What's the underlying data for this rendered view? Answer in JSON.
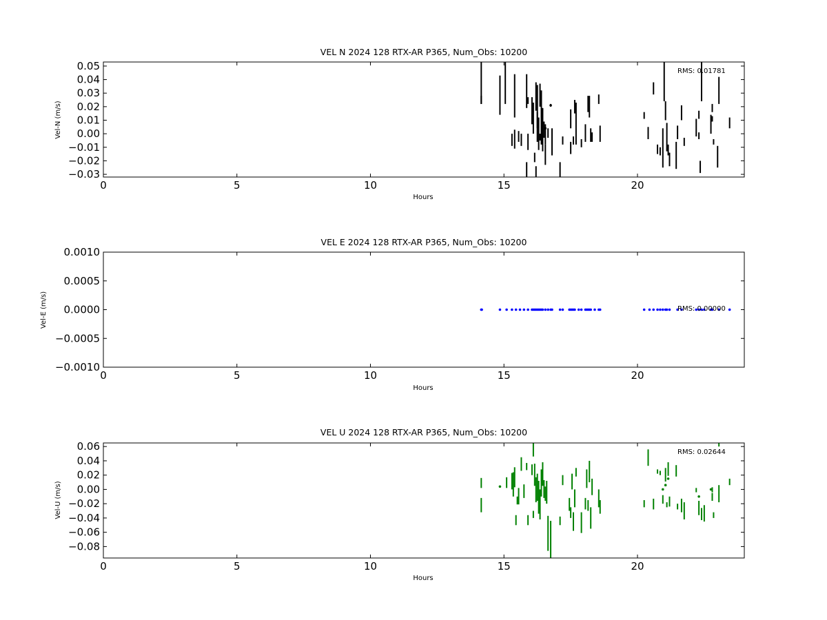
{
  "chart_data": [
    {
      "type": "scatter",
      "title": "VEL N 2024 128 RTX-AR  P365, Num_Obs: 10200",
      "xlabel": "Hours",
      "ylabel": "Vel-N (m/s)",
      "xlim": [
        0,
        24
      ],
      "ylim": [
        -0.032,
        0.053
      ],
      "xticks": [
        0,
        5,
        10,
        15,
        20
      ],
      "xtick_labels": [
        "0",
        "5",
        "10",
        "15",
        "20"
      ],
      "yticks": [
        -0.03,
        -0.02,
        -0.01,
        0.0,
        0.01,
        0.02,
        0.03,
        0.04,
        0.05
      ],
      "ytick_labels": [
        "−0.03",
        "−0.02",
        "−0.01",
        "0.00",
        "0.01",
        "0.02",
        "0.03",
        "0.04",
        "0.05"
      ],
      "color": "#000000",
      "annotation": "RMS:  0.01781",
      "annotation_color": "#0000ff",
      "grid": false,
      "segments": [
        [
          14.15,
          0.022,
          0.053
        ],
        [
          14.15,
          0.022,
          0.028
        ],
        [
          14.85,
          0.014,
          0.043
        ],
        [
          15.05,
          0.022,
          0.053
        ],
        [
          15.3,
          -0.009,
          0.0
        ],
        [
          15.4,
          0.012,
          0.044
        ],
        [
          15.4,
          -0.011,
          0.003
        ],
        [
          15.55,
          -0.006,
          0.002
        ],
        [
          15.65,
          -0.009,
          0.0
        ],
        [
          15.85,
          0.019,
          0.044
        ],
        [
          15.85,
          -0.032,
          -0.021
        ],
        [
          15.9,
          0.022,
          0.027
        ],
        [
          15.9,
          -0.012,
          0.0
        ],
        [
          16.05,
          0.007,
          0.027
        ],
        [
          16.1,
          0.0,
          0.023
        ],
        [
          16.15,
          -0.021,
          -0.014
        ],
        [
          16.2,
          -0.032,
          -0.024
        ],
        [
          16.2,
          0.017,
          0.038
        ],
        [
          16.25,
          0.004,
          0.036
        ],
        [
          16.25,
          -0.006,
          0.016
        ],
        [
          16.3,
          -0.012,
          0.012
        ],
        [
          16.35,
          0.02,
          0.037
        ],
        [
          16.35,
          -0.005,
          0.0
        ],
        [
          16.4,
          -0.008,
          0.032
        ],
        [
          16.45,
          -0.013,
          0.019
        ],
        [
          16.5,
          -0.003,
          0.009
        ],
        [
          16.55,
          -0.008,
          0.007
        ],
        [
          16.55,
          -0.023,
          -0.008
        ],
        [
          16.65,
          -0.003,
          0.004
        ],
        [
          16.8,
          -0.016,
          0.004
        ],
        [
          16.75,
          0.02,
          0.022
        ],
        [
          17.1,
          -0.032,
          -0.021
        ],
        [
          17.2,
          -0.008,
          -0.002
        ],
        [
          17.5,
          -0.015,
          -0.006
        ],
        [
          17.5,
          0.004,
          0.018
        ],
        [
          17.6,
          -0.008,
          -0.002
        ],
        [
          17.65,
          0.015,
          0.025
        ],
        [
          17.7,
          -0.008,
          0.023
        ],
        [
          17.9,
          -0.01,
          -0.004
        ],
        [
          18.05,
          -0.006,
          0.007
        ],
        [
          18.15,
          0.016,
          0.028
        ],
        [
          18.2,
          0.012,
          0.028
        ],
        [
          18.25,
          -0.006,
          0.004
        ],
        [
          18.3,
          -0.006,
          0.001
        ],
        [
          18.55,
          0.022,
          0.029
        ],
        [
          18.6,
          -0.006,
          0.006
        ],
        [
          20.25,
          0.011,
          0.016
        ],
        [
          20.4,
          -0.004,
          0.005
        ],
        [
          20.6,
          0.029,
          0.038
        ],
        [
          20.75,
          -0.015,
          -0.008
        ],
        [
          20.85,
          -0.016,
          -0.01
        ],
        [
          20.95,
          -0.025,
          0.004
        ],
        [
          21.0,
          0.024,
          0.053
        ],
        [
          21.05,
          0.01,
          0.024
        ],
        [
          21.1,
          -0.013,
          0.008
        ],
        [
          21.15,
          -0.016,
          -0.008
        ],
        [
          21.2,
          -0.024,
          -0.014
        ],
        [
          21.45,
          -0.026,
          -0.006
        ],
        [
          21.5,
          -0.004,
          0.006
        ],
        [
          21.65,
          0.01,
          0.021
        ],
        [
          21.75,
          -0.009,
          -0.003
        ],
        [
          22.2,
          -0.002,
          0.011
        ],
        [
          22.3,
          -0.004,
          0.001
        ],
        [
          22.3,
          0.011,
          0.017
        ],
        [
          22.35,
          -0.029,
          -0.02
        ],
        [
          22.4,
          0.024,
          0.053
        ],
        [
          22.75,
          0.0,
          0.014
        ],
        [
          22.8,
          0.009,
          0.013
        ],
        [
          22.8,
          0.016,
          0.022
        ],
        [
          22.85,
          -0.008,
          -0.004
        ],
        [
          23.0,
          -0.025,
          -0.009
        ],
        [
          23.05,
          0.022,
          0.042
        ],
        [
          23.45,
          0.004,
          0.012
        ]
      ],
      "points": [
        [
          16.75,
          0.021
        ],
        [
          16.55,
          0.004
        ]
      ]
    },
    {
      "type": "scatter",
      "title": "VEL E 2024 128 RTX-AR  P365, Num_Obs: 10200",
      "xlabel": "Hours",
      "ylabel": "Vel-E (m/s)",
      "xlim": [
        0,
        24
      ],
      "ylim": [
        -0.001,
        0.001
      ],
      "xticks": [
        0,
        5,
        10,
        15,
        20
      ],
      "xtick_labels": [
        "0",
        "5",
        "10",
        "15",
        "20"
      ],
      "yticks": [
        -0.001,
        -0.0005,
        0.0,
        0.0005,
        0.001
      ],
      "ytick_labels": [
        "−0.0010",
        "−0.0005",
        "0.0000",
        "0.0005",
        "0.0010"
      ],
      "color": "#0000ff",
      "annotation": "RMS:  0.00000",
      "annotation_color": "#0000ff",
      "grid": false,
      "segments": [],
      "points": [
        [
          14.15,
          0
        ],
        [
          14.17,
          0
        ],
        [
          14.85,
          0
        ],
        [
          15.1,
          0
        ],
        [
          15.3,
          0
        ],
        [
          15.45,
          0
        ],
        [
          15.6,
          0
        ],
        [
          15.75,
          0
        ],
        [
          15.9,
          0
        ],
        [
          16.05,
          0
        ],
        [
          16.1,
          0
        ],
        [
          16.15,
          0
        ],
        [
          16.2,
          0
        ],
        [
          16.25,
          0
        ],
        [
          16.3,
          0
        ],
        [
          16.35,
          0
        ],
        [
          16.4,
          0
        ],
        [
          16.45,
          0
        ],
        [
          16.55,
          0
        ],
        [
          16.65,
          0
        ],
        [
          16.75,
          0
        ],
        [
          16.8,
          0
        ],
        [
          17.1,
          0
        ],
        [
          17.2,
          0
        ],
        [
          17.45,
          0
        ],
        [
          17.5,
          0
        ],
        [
          17.55,
          0
        ],
        [
          17.6,
          0
        ],
        [
          17.65,
          0
        ],
        [
          17.8,
          0
        ],
        [
          17.9,
          0
        ],
        [
          18.05,
          0
        ],
        [
          18.1,
          0
        ],
        [
          18.15,
          0
        ],
        [
          18.2,
          0
        ],
        [
          18.25,
          0
        ],
        [
          18.4,
          0
        ],
        [
          18.55,
          0
        ],
        [
          18.6,
          0
        ],
        [
          20.25,
          0
        ],
        [
          20.45,
          0
        ],
        [
          20.6,
          0
        ],
        [
          20.75,
          0
        ],
        [
          20.85,
          0
        ],
        [
          20.95,
          0
        ],
        [
          21.05,
          0
        ],
        [
          21.1,
          0
        ],
        [
          21.2,
          0
        ],
        [
          21.5,
          0
        ],
        [
          21.65,
          0
        ],
        [
          22.2,
          0
        ],
        [
          22.3,
          0
        ],
        [
          22.4,
          0
        ],
        [
          22.5,
          0
        ],
        [
          22.75,
          0
        ],
        [
          22.8,
          0
        ],
        [
          23.05,
          0
        ],
        [
          23.45,
          0
        ]
      ]
    },
    {
      "type": "scatter",
      "title": "VEL U 2024 128 RTX-AR  P365, Num_Obs: 10200",
      "xlabel": "Hours",
      "ylabel": "Vel-U (m/s)",
      "xlim": [
        0,
        24
      ],
      "ylim": [
        -0.096,
        0.065
      ],
      "xticks": [
        0,
        5,
        10,
        15,
        20
      ],
      "xtick_labels": [
        "0",
        "5",
        "10",
        "15",
        "20"
      ],
      "yticks": [
        -0.08,
        -0.06,
        -0.04,
        -0.02,
        0.0,
        0.02,
        0.04,
        0.06
      ],
      "ytick_labels": [
        "−0.08",
        "−0.06",
        "−0.04",
        "−0.02",
        "0.00",
        "0.02",
        "0.04",
        "0.06"
      ],
      "color": "#008000",
      "annotation": "RMS:  0.02644",
      "annotation_color": "#0000ff",
      "grid": false,
      "segments": [
        [
          14.15,
          0.002,
          0.016
        ],
        [
          14.15,
          -0.032,
          -0.012
        ],
        [
          15.1,
          0.002,
          0.017
        ],
        [
          15.3,
          0.0,
          0.023
        ],
        [
          15.35,
          -0.01,
          0.024
        ],
        [
          15.4,
          0.003,
          0.031
        ],
        [
          15.45,
          -0.05,
          -0.036
        ],
        [
          15.5,
          -0.021,
          -0.01
        ],
        [
          15.55,
          -0.021,
          0.002
        ],
        [
          15.65,
          0.026,
          0.045
        ],
        [
          15.75,
          -0.012,
          0.007
        ],
        [
          15.85,
          0.027,
          0.037
        ],
        [
          15.9,
          -0.05,
          -0.036
        ],
        [
          16.05,
          0.02,
          0.035
        ],
        [
          16.1,
          -0.04,
          -0.03
        ],
        [
          16.1,
          0.046,
          0.065
        ],
        [
          16.15,
          0.005,
          0.036
        ],
        [
          16.2,
          -0.018,
          0.017
        ],
        [
          16.25,
          -0.016,
          0.022
        ],
        [
          16.3,
          -0.034,
          0.012
        ],
        [
          16.35,
          -0.042,
          0.0
        ],
        [
          16.4,
          -0.01,
          0.028
        ],
        [
          16.45,
          0.005,
          0.038
        ],
        [
          16.5,
          -0.012,
          0.013
        ],
        [
          16.55,
          -0.016,
          0.004
        ],
        [
          16.6,
          -0.02,
          0.012
        ],
        [
          16.65,
          -0.086,
          -0.037
        ],
        [
          16.75,
          -0.096,
          -0.044
        ],
        [
          17.1,
          -0.05,
          -0.038
        ],
        [
          17.2,
          0.006,
          0.02
        ],
        [
          17.45,
          -0.03,
          -0.012
        ],
        [
          17.5,
          -0.04,
          -0.025
        ],
        [
          17.55,
          0.0,
          0.022
        ],
        [
          17.6,
          -0.058,
          -0.032
        ],
        [
          17.65,
          -0.025,
          0.0
        ],
        [
          17.7,
          0.018,
          0.03
        ],
        [
          17.9,
          -0.061,
          -0.032
        ],
        [
          18.05,
          -0.028,
          -0.012
        ],
        [
          18.1,
          0.002,
          0.028
        ],
        [
          18.15,
          -0.03,
          -0.015
        ],
        [
          18.2,
          0.01,
          0.04
        ],
        [
          18.25,
          -0.055,
          -0.025
        ],
        [
          18.3,
          -0.008,
          0.015
        ],
        [
          18.55,
          -0.025,
          0.0
        ],
        [
          18.6,
          -0.034,
          -0.015
        ],
        [
          20.25,
          -0.025,
          -0.015
        ],
        [
          20.4,
          0.033,
          0.056
        ],
        [
          20.6,
          -0.028,
          -0.013
        ],
        [
          20.75,
          0.022,
          0.028
        ],
        [
          20.85,
          0.02,
          0.026
        ],
        [
          20.95,
          -0.02,
          -0.008
        ],
        [
          21.05,
          0.011,
          0.03
        ],
        [
          21.1,
          -0.025,
          -0.018
        ],
        [
          21.15,
          0.019,
          0.038
        ],
        [
          21.2,
          -0.024,
          -0.01
        ],
        [
          21.45,
          0.018,
          0.034
        ],
        [
          21.5,
          -0.028,
          -0.02
        ],
        [
          21.65,
          -0.032,
          -0.013
        ],
        [
          21.75,
          -0.042,
          -0.018
        ],
        [
          22.2,
          -0.004,
          0.002
        ],
        [
          22.3,
          -0.036,
          -0.016
        ],
        [
          22.4,
          -0.043,
          -0.026
        ],
        [
          22.5,
          -0.045,
          -0.022
        ],
        [
          22.8,
          -0.016,
          -0.005
        ],
        [
          22.8,
          -0.004,
          0.003
        ],
        [
          22.85,
          -0.04,
          -0.032
        ],
        [
          23.05,
          -0.018,
          0.006
        ],
        [
          23.05,
          0.06,
          0.068
        ],
        [
          23.45,
          0.006,
          0.015
        ]
      ],
      "points": [
        [
          14.85,
          0.004
        ],
        [
          20.95,
          0.0
        ],
        [
          21.05,
          0.006
        ],
        [
          21.15,
          0.015
        ],
        [
          22.3,
          -0.01
        ],
        [
          22.75,
          0.0
        ]
      ]
    }
  ]
}
